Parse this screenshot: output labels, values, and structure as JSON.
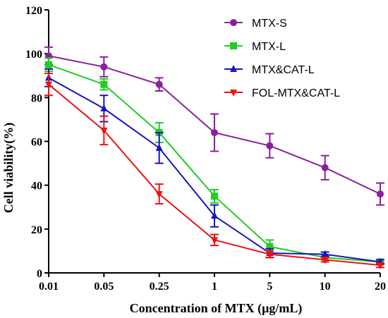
{
  "chart_data": {
    "type": "line",
    "title": "",
    "xlabel": "Concentration of MTX (μg/mL)",
    "ylabel": "Cell viability(%)",
    "ylim": [
      0,
      120
    ],
    "y_ticks": [
      "0",
      "20",
      "40",
      "60",
      "80",
      "100",
      "120"
    ],
    "categories": [
      "0.01",
      "0.05",
      "0.25",
      "1",
      "5",
      "10",
      "20"
    ],
    "grid": false,
    "legend": "top-right",
    "series": [
      {
        "name": "MTX-S",
        "color": "#8B1F9E",
        "marker": "circle",
        "values": [
          99,
          94,
          86,
          64,
          58,
          48,
          36
        ],
        "errors": [
          4,
          4.5,
          3,
          8.5,
          5.5,
          5.5,
          5
        ]
      },
      {
        "name": "MTX-L",
        "color": "#22CC22",
        "marker": "square",
        "values": [
          95,
          86,
          64,
          35,
          12,
          7,
          5
        ],
        "errors": [
          3,
          2.5,
          4.5,
          3,
          3,
          0,
          1
        ]
      },
      {
        "name": "MTX&CAT-L",
        "color": "#1515C0",
        "marker": "triangle-up",
        "values": [
          89,
          75,
          57,
          26,
          9,
          8.5,
          5
        ],
        "errors": [
          4,
          6,
          7,
          5,
          2,
          1,
          1
        ]
      },
      {
        "name": "FOL-MTX&CAT-L",
        "color": "#EE1111",
        "marker": "triangle-down",
        "values": [
          86,
          65,
          36,
          15,
          8.5,
          6,
          3.5
        ],
        "errors": [
          5,
          6.5,
          4.5,
          2.5,
          1.5,
          1,
          1
        ]
      }
    ]
  }
}
